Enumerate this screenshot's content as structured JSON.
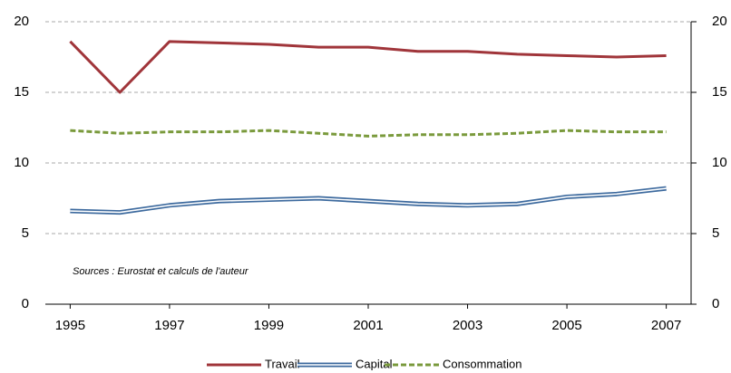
{
  "chart_data": {
    "type": "line",
    "x": [
      1995,
      1996,
      1997,
      1998,
      1999,
      2000,
      2001,
      2002,
      2003,
      2004,
      2005,
      2006,
      2007
    ],
    "xlim": [
      1994.5,
      2007.5
    ],
    "xticks": [
      1995,
      1997,
      1999,
      2001,
      2003,
      2005,
      2007
    ],
    "ylim": [
      0,
      20
    ],
    "yticks": [
      0,
      5,
      10,
      15,
      20
    ],
    "y2lim": [
      0,
      20
    ],
    "y2ticks": [
      0,
      5,
      10,
      15,
      20
    ],
    "grid": true,
    "legend": "bottom",
    "annotation": "Sources : Eurostat et calculs de l'auteur",
    "series": [
      {
        "name": "Travail",
        "color": "#a0353a",
        "style": "solid",
        "values": [
          18.6,
          15.0,
          18.6,
          18.5,
          18.4,
          18.2,
          18.2,
          17.9,
          17.9,
          17.7,
          17.6,
          17.5,
          17.6
        ]
      },
      {
        "name": "Capital",
        "color": "#3d6a9e",
        "style": "double",
        "values": [
          6.6,
          6.5,
          7.0,
          7.3,
          7.4,
          7.5,
          7.3,
          7.1,
          7.0,
          7.1,
          7.6,
          7.8,
          8.2
        ]
      },
      {
        "name": "Consommation",
        "color": "#7a9a3c",
        "style": "dashed",
        "values": [
          12.3,
          12.1,
          12.2,
          12.2,
          12.3,
          12.1,
          11.9,
          12.0,
          12.0,
          12.1,
          12.3,
          12.2,
          12.2
        ]
      }
    ]
  }
}
